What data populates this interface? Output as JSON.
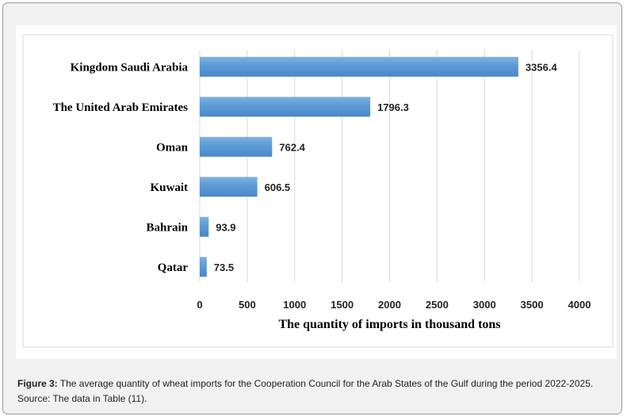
{
  "chart_data": {
    "type": "bar",
    "orientation": "horizontal",
    "categories": [
      "Kingdom Saudi Arabia",
      "The United Arab Emirates",
      "Oman",
      "Kuwait",
      "Bahrain",
      "Qatar"
    ],
    "values": [
      3356.4,
      1796.3,
      762.4,
      606.5,
      93.9,
      73.5
    ],
    "value_labels": [
      "3356.4",
      "1796.3",
      "762.4",
      "606.5",
      "93.9",
      "73.5"
    ],
    "xlabel": "The quantity of imports in thousand tons",
    "ylabel": "",
    "xlim": [
      0,
      4000
    ],
    "x_ticks": [
      "0",
      "500",
      "1000",
      "1500",
      "2000",
      "2500",
      "3000",
      "3500",
      "4000"
    ],
    "grid": "vertical",
    "bar_color": "#5b9bd5"
  },
  "caption": {
    "figure_label": "Figure 3:",
    "text": " The average quantity of wheat imports for the Cooperation Council for the Arab States of the Gulf during the period 2022-2025.",
    "source": "Source: The data in Table (11)."
  }
}
